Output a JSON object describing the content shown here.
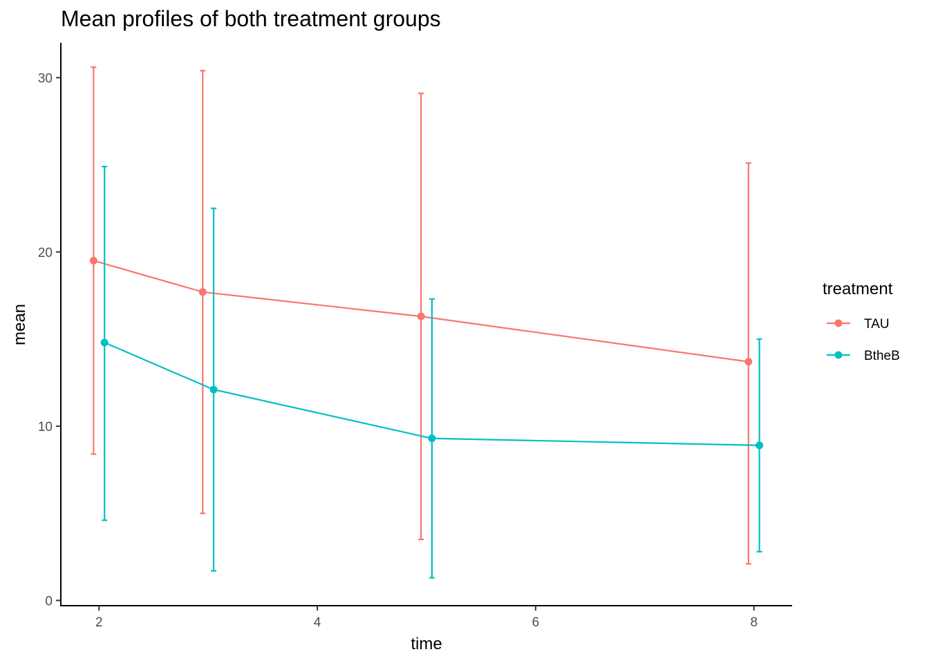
{
  "chart_data": {
    "type": "line",
    "title": "Mean profiles of both treatment groups",
    "xlabel": "time",
    "ylabel": "mean",
    "xlim": [
      1.65,
      8.35
    ],
    "ylim": [
      -0.3,
      32.0
    ],
    "x_ticks": [
      2,
      4,
      6,
      8
    ],
    "y_ticks": [
      0,
      10,
      20,
      30
    ],
    "grid": false,
    "legend_title": "treatment",
    "legend_position": "right",
    "series": [
      {
        "name": "TAU",
        "color": "#F8766D",
        "x": [
          2,
          3,
          5,
          8
        ],
        "y": [
          19.5,
          17.7,
          16.3,
          13.7
        ],
        "ymin": [
          8.4,
          5.0,
          3.5,
          2.1
        ],
        "ymax": [
          30.6,
          30.4,
          29.1,
          25.1
        ]
      },
      {
        "name": "BtheB",
        "color": "#00BFC4",
        "x": [
          2,
          3,
          5,
          8
        ],
        "y": [
          14.8,
          12.1,
          9.3,
          8.9
        ],
        "ymin": [
          4.6,
          1.7,
          1.3,
          2.8
        ],
        "ymax": [
          24.9,
          22.5,
          17.3,
          15.0
        ]
      }
    ]
  }
}
